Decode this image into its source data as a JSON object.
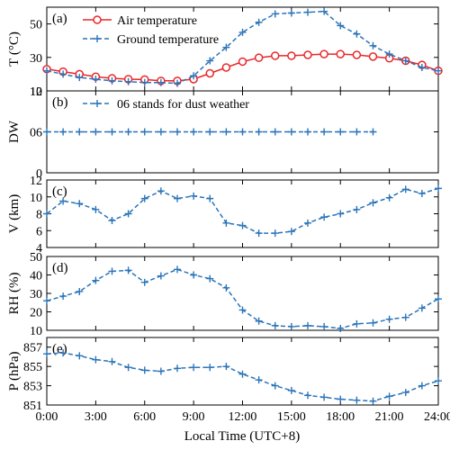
{
  "figure": {
    "xlabel": "Local Time (UTC+8)",
    "x_ticks": [
      0,
      3,
      6,
      9,
      12,
      15,
      18,
      21,
      24
    ],
    "x_tick_labels": [
      "0:00",
      "3:00",
      "6:00",
      "9:00",
      "12:00",
      "15:00",
      "18:00",
      "21:00",
      "24:00"
    ]
  },
  "chart_data": [
    {
      "type": "line",
      "panel_label": "(a)",
      "ylabel": "T (°C)",
      "xlim": [
        0,
        24
      ],
      "ylim": [
        10,
        60
      ],
      "y_ticks": [
        10,
        30,
        50
      ],
      "legend_position": "top-left",
      "series": [
        {
          "name": "Air temperature",
          "color": "#e8282b",
          "style": "solid",
          "marker": "circle",
          "x": [
            0,
            1,
            2,
            3,
            4,
            5,
            6,
            7,
            8,
            9,
            10,
            11,
            12,
            13,
            14,
            15,
            16,
            17,
            18,
            19,
            20,
            21,
            22,
            23,
            24
          ],
          "values": [
            23,
            21.5,
            20,
            18.5,
            17.5,
            17,
            16.8,
            16,
            16,
            17,
            20.5,
            24,
            27.5,
            29.8,
            31,
            31,
            31.5,
            32,
            32,
            31.5,
            30.5,
            29.5,
            28,
            25.5,
            22
          ]
        },
        {
          "name": "Ground temperature",
          "color": "#2b74b8",
          "style": "dashed",
          "marker": "plus",
          "x": [
            0,
            1,
            2,
            3,
            4,
            5,
            6,
            7,
            8,
            9,
            10,
            11,
            12,
            13,
            14,
            15,
            16,
            17,
            18,
            19,
            20,
            21,
            22,
            23,
            24
          ],
          "values": [
            22,
            20,
            18,
            17,
            16,
            15.5,
            15,
            15,
            14.5,
            19,
            28,
            36,
            45,
            51,
            56,
            56.5,
            57,
            57.5,
            49,
            44,
            37,
            32,
            28,
            24,
            22
          ]
        }
      ]
    },
    {
      "type": "line",
      "panel_label": "(b)",
      "ylabel": "DW",
      "xlim": [
        0,
        24
      ],
      "ylim": [
        0,
        12
      ],
      "y_ticks": [
        0,
        6,
        12
      ],
      "y_tick_labels": [
        "0",
        "06",
        "12"
      ],
      "legend_position": "top-left",
      "series": [
        {
          "name": "06 stands for dust weather",
          "color": "#2b74b8",
          "style": "dashed",
          "marker": "plus",
          "x": [
            0,
            1,
            2,
            3,
            4,
            5,
            6,
            7,
            8,
            9,
            10,
            11,
            12,
            13,
            14,
            15,
            16,
            17,
            18,
            19,
            20
          ],
          "values": [
            6,
            6,
            6,
            6,
            6,
            6,
            6,
            6,
            6,
            6,
            6,
            6,
            6,
            6,
            6,
            6,
            6,
            6,
            6,
            6,
            6
          ]
        }
      ]
    },
    {
      "type": "line",
      "panel_label": "(c)",
      "ylabel": "V (km)",
      "xlim": [
        0,
        24
      ],
      "ylim": [
        4,
        12
      ],
      "y_ticks": [
        4,
        6,
        8,
        10,
        12
      ],
      "series": [
        {
          "color": "#2b74b8",
          "style": "dashed",
          "marker": "plus",
          "x": [
            0,
            1,
            2,
            3,
            4,
            5,
            6,
            7,
            8,
            9,
            10,
            11,
            12,
            13,
            14,
            15,
            16,
            17,
            18,
            19,
            20,
            21,
            22,
            23,
            24
          ],
          "values": [
            8,
            9.5,
            9.2,
            8.5,
            7.2,
            8,
            9.8,
            10.7,
            9.8,
            10.1,
            9.8,
            6.9,
            6.6,
            5.7,
            5.7,
            5.9,
            6.9,
            7.6,
            8,
            8.5,
            9.3,
            9.9,
            10.9,
            10.4,
            11
          ]
        }
      ]
    },
    {
      "type": "line",
      "panel_label": "(d)",
      "ylabel": "RH (%)",
      "xlim": [
        0,
        24
      ],
      "ylim": [
        10,
        50
      ],
      "y_ticks": [
        10,
        20,
        30,
        40,
        50
      ],
      "series": [
        {
          "color": "#2b74b8",
          "style": "dashed",
          "marker": "plus",
          "x": [
            0,
            1,
            2,
            3,
            4,
            5,
            6,
            7,
            8,
            9,
            10,
            11,
            12,
            13,
            14,
            15,
            16,
            17,
            18,
            19,
            20,
            21,
            22,
            23,
            24
          ],
          "values": [
            26,
            28.5,
            31,
            37,
            42,
            42.5,
            36,
            39.5,
            43,
            40,
            38,
            33,
            21,
            15,
            12.5,
            12,
            12.5,
            12,
            11,
            13.5,
            14,
            16,
            17,
            22,
            27
          ]
        }
      ]
    },
    {
      "type": "line",
      "panel_label": "(e)",
      "ylabel": "P (hPa)",
      "xlim": [
        0,
        24
      ],
      "ylim": [
        851,
        858
      ],
      "y_ticks": [
        851,
        853,
        855,
        857
      ],
      "series": [
        {
          "color": "#2b74b8",
          "style": "dashed",
          "marker": "plus",
          "x": [
            0,
            1,
            2,
            3,
            4,
            5,
            6,
            7,
            8,
            9,
            10,
            11,
            12,
            13,
            14,
            15,
            16,
            17,
            18,
            19,
            20,
            21,
            22,
            23,
            24
          ],
          "values": [
            856.3,
            856.4,
            856.1,
            855.7,
            855.5,
            854.9,
            854.6,
            854.5,
            854.8,
            854.9,
            854.9,
            855,
            854.2,
            853.6,
            853,
            852.5,
            852,
            851.8,
            851.6,
            851.5,
            851.4,
            851.9,
            852.3,
            853,
            853.5
          ]
        }
      ]
    }
  ]
}
